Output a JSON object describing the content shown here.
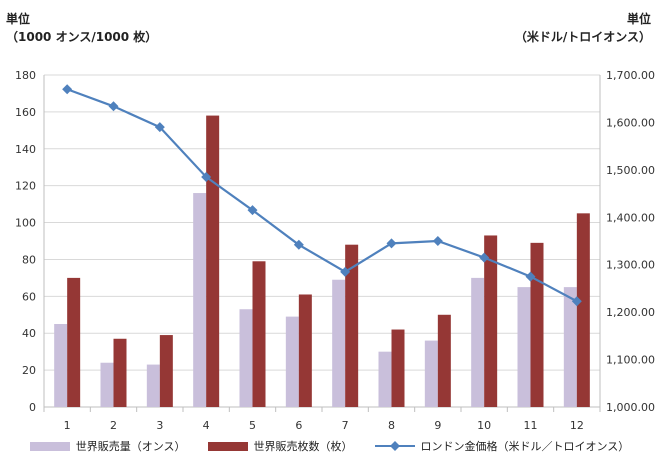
{
  "left_unit": {
    "line1": "単位",
    "line2": "（1000 オンス/1000 枚）"
  },
  "right_unit": {
    "line1": "単位",
    "line2": "（米ドル/トロイオンス）"
  },
  "chart_data": {
    "type": "bar",
    "categories": [
      "1",
      "2",
      "3",
      "4",
      "5",
      "6",
      "7",
      "8",
      "9",
      "10",
      "11",
      "12"
    ],
    "series": [
      {
        "name": "世界販売量（オンス）",
        "type": "bar",
        "axis": "left",
        "color": "#c9bfdb",
        "values": [
          45,
          24,
          23,
          116,
          53,
          49,
          69,
          30,
          36,
          70,
          65,
          65
        ]
      },
      {
        "name": "世界販売枚数（枚）",
        "type": "bar",
        "axis": "left",
        "color": "#953735",
        "values": [
          70,
          37,
          39,
          158,
          79,
          61,
          88,
          42,
          50,
          93,
          89,
          105
        ]
      },
      {
        "name": "ロンドン金価格（米ドル／トロイオンス）",
        "type": "line",
        "axis": "right",
        "color": "#4f81bd",
        "marker": "diamond",
        "values": [
          1670,
          1634,
          1590,
          1485,
          1415,
          1342,
          1285,
          1345,
          1350,
          1315,
          1275,
          1223
        ]
      }
    ],
    "y_left": {
      "min": 0,
      "max": 180,
      "step": 20
    },
    "y_right": {
      "min": 1000,
      "max": 1700,
      "step": 100
    },
    "y_right_ticks": [
      "1,000.00",
      "1,100.00",
      "1,200.00",
      "1,300.00",
      "1,400.00",
      "1,500.00",
      "1,600.00",
      "1,700.00"
    ],
    "grid": true,
    "legend": "bottom"
  }
}
